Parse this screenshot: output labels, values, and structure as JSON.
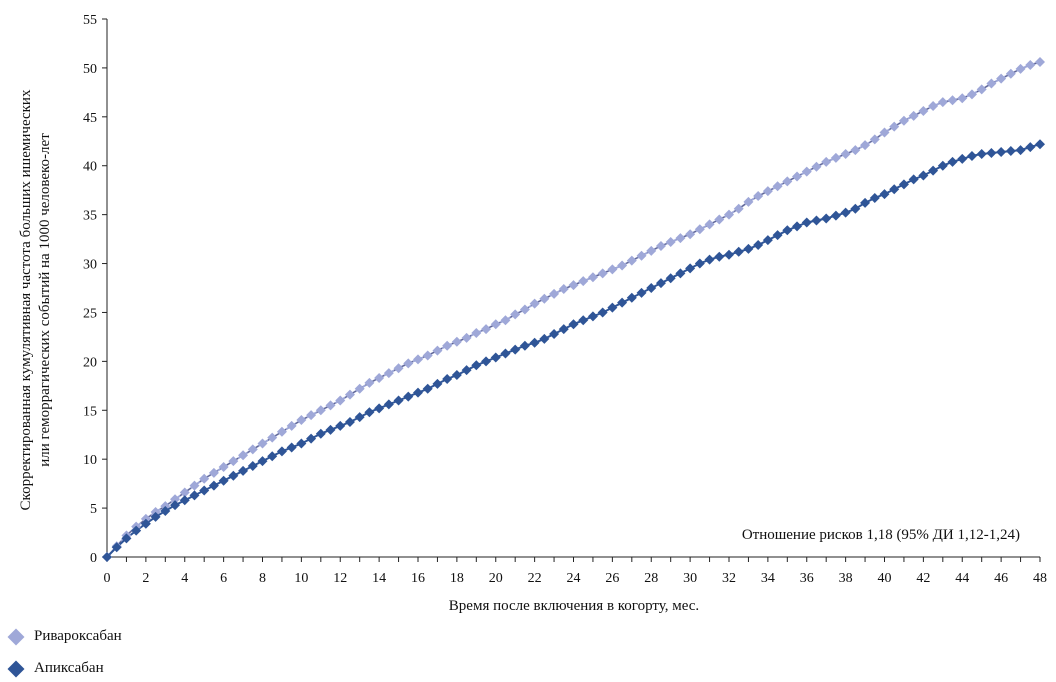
{
  "chart_data": {
    "type": "line",
    "ylabel_line1": "Скорректированная кумулятивная частота больших ишемических",
    "ylabel_line2": "или геморрагических событий на 1000 человеко-лет",
    "xlabel": "Время после включения в когорту, мес.",
    "annotation": "Отношение рисков 1,18 (95% ДИ 1,12-1,24)",
    "xlim": [
      0,
      48
    ],
    "ylim": [
      0,
      55
    ],
    "x_ticks": [
      0,
      2,
      4,
      6,
      8,
      10,
      12,
      14,
      16,
      18,
      20,
      22,
      24,
      26,
      28,
      30,
      32,
      34,
      36,
      38,
      40,
      42,
      44,
      46,
      48
    ],
    "y_ticks": [
      0,
      5,
      10,
      15,
      20,
      25,
      30,
      35,
      40,
      45,
      50,
      55
    ],
    "grid": false,
    "legend_position": "bottom-left",
    "series": [
      {
        "name": "Ривароксабан",
        "color": "#9fa8d8",
        "x": [
          0,
          0.5,
          1,
          1.5,
          2,
          2.5,
          3,
          3.5,
          4,
          4.5,
          5,
          5.5,
          6,
          6.5,
          7,
          7.5,
          8,
          8.5,
          9,
          9.5,
          10,
          10.5,
          11,
          11.5,
          12,
          12.5,
          13,
          13.5,
          14,
          14.5,
          15,
          15.5,
          16,
          16.5,
          17,
          17.5,
          18,
          18.5,
          19,
          19.5,
          20,
          20.5,
          21,
          21.5,
          22,
          22.5,
          23,
          23.5,
          24,
          24.5,
          25,
          25.5,
          26,
          26.5,
          27,
          27.5,
          28,
          28.5,
          29,
          29.5,
          30,
          30.5,
          31,
          31.5,
          32,
          32.5,
          33,
          33.5,
          34,
          34.5,
          35,
          35.5,
          36,
          36.5,
          37,
          37.5,
          38,
          38.5,
          39,
          39.5,
          40,
          40.5,
          41,
          41.5,
          42,
          42.5,
          43,
          43.5,
          44,
          44.5,
          45,
          45.5,
          46,
          46.5,
          47,
          47.5,
          48
        ],
        "values": [
          0,
          1.1,
          2.2,
          3.1,
          3.9,
          4.6,
          5.2,
          5.9,
          6.6,
          7.3,
          8.0,
          8.6,
          9.2,
          9.8,
          10.4,
          11.0,
          11.6,
          12.2,
          12.8,
          13.4,
          14.0,
          14.5,
          15.0,
          15.5,
          16.0,
          16.6,
          17.2,
          17.8,
          18.3,
          18.8,
          19.3,
          19.8,
          20.2,
          20.6,
          21.1,
          21.6,
          22.0,
          22.4,
          22.9,
          23.3,
          23.8,
          24.2,
          24.8,
          25.3,
          25.9,
          26.4,
          26.9,
          27.4,
          27.8,
          28.2,
          28.6,
          29.0,
          29.4,
          29.8,
          30.3,
          30.8,
          31.3,
          31.8,
          32.2,
          32.6,
          33.0,
          33.5,
          34.0,
          34.5,
          35.0,
          35.6,
          36.3,
          36.9,
          37.4,
          37.9,
          38.4,
          38.9,
          39.4,
          39.9,
          40.4,
          40.8,
          41.2,
          41.6,
          42.1,
          42.7,
          43.4,
          44.0,
          44.6,
          45.1,
          45.6,
          46.1,
          46.5,
          46.7,
          46.9,
          47.3,
          47.8,
          48.4,
          48.9,
          49.4,
          49.9,
          50.3,
          50.6
        ]
      },
      {
        "name": "Апиксабан",
        "color": "#2f5597",
        "x": [
          0,
          0.5,
          1,
          1.5,
          2,
          2.5,
          3,
          3.5,
          4,
          4.5,
          5,
          5.5,
          6,
          6.5,
          7,
          7.5,
          8,
          8.5,
          9,
          9.5,
          10,
          10.5,
          11,
          11.5,
          12,
          12.5,
          13,
          13.5,
          14,
          14.5,
          15,
          15.5,
          16,
          16.5,
          17,
          17.5,
          18,
          18.5,
          19,
          19.5,
          20,
          20.5,
          21,
          21.5,
          22,
          22.5,
          23,
          23.5,
          24,
          24.5,
          25,
          25.5,
          26,
          26.5,
          27,
          27.5,
          28,
          28.5,
          29,
          29.5,
          30,
          30.5,
          31,
          31.5,
          32,
          32.5,
          33,
          33.5,
          34,
          34.5,
          35,
          35.5,
          36,
          36.5,
          37,
          37.5,
          38,
          38.5,
          39,
          39.5,
          40,
          40.5,
          41,
          41.5,
          42,
          42.5,
          43,
          43.5,
          44,
          44.5,
          45,
          45.5,
          46,
          46.5,
          47,
          47.5,
          48
        ],
        "values": [
          0,
          1.0,
          1.9,
          2.7,
          3.4,
          4.1,
          4.7,
          5.3,
          5.8,
          6.3,
          6.8,
          7.3,
          7.8,
          8.3,
          8.8,
          9.3,
          9.8,
          10.3,
          10.8,
          11.2,
          11.6,
          12.1,
          12.6,
          13.0,
          13.4,
          13.8,
          14.3,
          14.8,
          15.2,
          15.6,
          16.0,
          16.4,
          16.8,
          17.2,
          17.7,
          18.2,
          18.6,
          19.1,
          19.6,
          20.0,
          20.4,
          20.8,
          21.2,
          21.6,
          21.9,
          22.3,
          22.8,
          23.3,
          23.8,
          24.2,
          24.6,
          25.0,
          25.5,
          26.0,
          26.5,
          27.0,
          27.5,
          28.0,
          28.5,
          29.0,
          29.5,
          30.0,
          30.4,
          30.7,
          30.9,
          31.2,
          31.5,
          31.9,
          32.4,
          32.9,
          33.4,
          33.8,
          34.2,
          34.4,
          34.6,
          34.9,
          35.2,
          35.6,
          36.2,
          36.7,
          37.1,
          37.6,
          38.1,
          38.6,
          39.0,
          39.5,
          40.0,
          40.4,
          40.7,
          41.0,
          41.2,
          41.3,
          41.4,
          41.5,
          41.6,
          41.9,
          42.2
        ]
      }
    ]
  }
}
